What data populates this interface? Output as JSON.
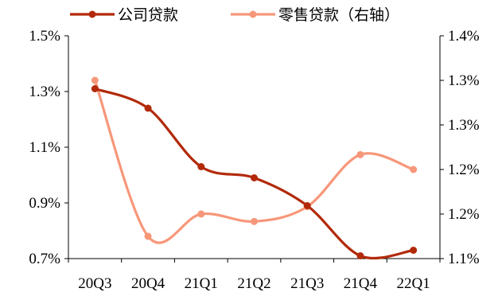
{
  "chart_data": {
    "type": "line",
    "categories": [
      "20Q3",
      "20Q4",
      "21Q1",
      "21Q2",
      "21Q3",
      "21Q4",
      "22Q1"
    ],
    "series": [
      {
        "name": "公司贷款",
        "axis": "left",
        "color": "#b22a0a",
        "values": [
          1.31,
          1.24,
          1.03,
          0.99,
          0.89,
          0.71,
          0.73
        ]
      },
      {
        "name": "零售贷款（右轴）",
        "axis": "right",
        "color": "#f7977a",
        "values": [
          1.34,
          1.13,
          1.16,
          1.15,
          1.17,
          1.24,
          1.22
        ]
      }
    ],
    "left_axis": {
      "ylim": [
        0.7,
        1.5
      ],
      "ticks": [
        0.7,
        0.9,
        1.1,
        1.3,
        1.5
      ],
      "tick_labels": [
        "0.7%",
        "0.9%",
        "1.1%",
        "1.3%",
        "1.5%"
      ]
    },
    "right_axis": {
      "ylim": [
        1.1,
        1.4
      ],
      "ticks": [
        1.1,
        1.16,
        1.22,
        1.28,
        1.34,
        1.4
      ],
      "tick_labels": [
        "1.1%",
        "1.2%",
        "1.2%",
        "1.3%",
        "1.3%",
        "1.4%"
      ]
    },
    "legend_position": "top",
    "grid": false
  }
}
